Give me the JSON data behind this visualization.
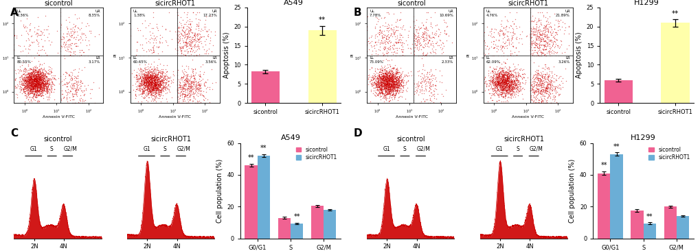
{
  "panel_A": {
    "title": "A549",
    "bar_labels": [
      "sicontrol",
      "sicircRHOT1"
    ],
    "bar_values": [
      8.2,
      19.0
    ],
    "bar_errors": [
      0.5,
      1.2
    ],
    "bar_colors": [
      "#f06292",
      "#ffffaa"
    ],
    "ylabel": "Apoptosis (%)",
    "ylim": [
      0,
      25
    ],
    "yticks": [
      0,
      5,
      10,
      15,
      20,
      25
    ],
    "significance": {
      "bar_idx": 1,
      "text": "**",
      "y": 20.8
    },
    "scatter1": {
      "title": "sicontrol",
      "ul": "UL\n2.36%",
      "ur": "UR\n8.35%",
      "ll": "LL\n80.55%",
      "lr": "LR\n3.17%",
      "n_live": 1800,
      "n_early": 200,
      "n_late": 180,
      "n_dead": 100
    },
    "scatter2": {
      "title": "sicircRHOT1",
      "ul": "UL\n1.38%",
      "ur": "UR\n17.23%",
      "ll": "LL\n60.65%",
      "lr": "LR\n3.56%",
      "n_live": 1400,
      "n_early": 450,
      "n_late": 400,
      "n_dead": 90
    }
  },
  "panel_B": {
    "title": "H1299",
    "bar_labels": [
      "sicontrol",
      "sicircRHOT1"
    ],
    "bar_values": [
      6.0,
      21.0
    ],
    "bar_errors": [
      0.4,
      1.0
    ],
    "bar_colors": [
      "#f06292",
      "#ffffaa"
    ],
    "ylabel": "Apoptosis (%)",
    "ylim": [
      0,
      25
    ],
    "yticks": [
      0,
      5,
      10,
      15,
      20,
      25
    ],
    "significance": {
      "bar_idx": 1,
      "text": "**",
      "y": 22.5
    },
    "scatter1": {
      "title": "sicontrol",
      "ul": "UL\n7.78%",
      "ur": "UR\n10.69%",
      "ll": "LL\n73.09%",
      "lr": "LR\n2.33%",
      "n_live": 1600,
      "n_early": 160,
      "n_late": 260,
      "n_dead": 280
    },
    "scatter2": {
      "title": "sicircRHOT1",
      "ul": "UL\n4.76%",
      "ur": "UR\n21.89%",
      "ll": "LL\n62.09%",
      "lr": "LR\n3.26%",
      "n_live": 1300,
      "n_early": 500,
      "n_late": 480,
      "n_dead": 180
    }
  },
  "panel_C": {
    "title": "A549",
    "groups": [
      "G0/G1",
      "S",
      "G2/M"
    ],
    "sicontrol_values": [
      46.0,
      13.0,
      20.5
    ],
    "sicircRHOT1_values": [
      52.0,
      9.5,
      18.0
    ],
    "sicontrol_errors": [
      1.0,
      0.6,
      0.7
    ],
    "sicircRHOT1_errors": [
      1.0,
      0.5,
      0.5
    ],
    "sicontrol_color": "#f06292",
    "sicircRHOT1_color": "#6baed6",
    "ylabel": "Cell population (%)",
    "ylim": [
      0,
      60
    ],
    "yticks": [
      0,
      20,
      40,
      60
    ],
    "sig_g01_si": "**",
    "sig_g01_circ": "**",
    "sig_s_si": "",
    "sig_s_circ": "**"
  },
  "panel_D": {
    "title": "H1299",
    "groups": [
      "G0/G1",
      "S",
      "G2/M"
    ],
    "sicontrol_values": [
      41.0,
      17.5,
      20.0
    ],
    "sicircRHOT1_values": [
      53.0,
      9.5,
      14.0
    ],
    "sicontrol_errors": [
      1.2,
      0.8,
      0.7
    ],
    "sicircRHOT1_errors": [
      1.0,
      0.6,
      0.5
    ],
    "sicontrol_color": "#f06292",
    "sicircRHOT1_color": "#6baed6",
    "ylabel": "Cell population (%)",
    "ylim": [
      0,
      60
    ],
    "yticks": [
      0,
      20,
      40,
      60
    ],
    "sig_g01_si": "**",
    "sig_g01_circ": "**",
    "sig_s_si": "",
    "sig_s_circ": "**"
  },
  "background_color": "#ffffff",
  "scatter_dot_color": "#cc0000",
  "hist_fill_color": "#cc0000",
  "panel_label_fontsize": 11,
  "axis_label_fontsize": 7,
  "tick_fontsize": 6,
  "title_fontsize": 8
}
